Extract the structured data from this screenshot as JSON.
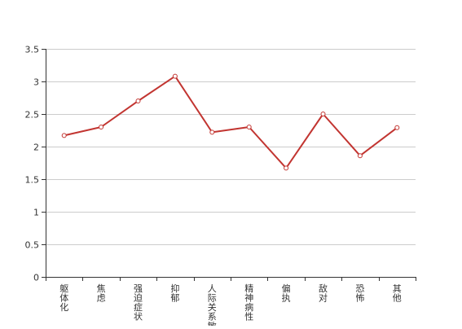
{
  "chart_data": {
    "type": "line",
    "categories": [
      "躯体化",
      "焦虑",
      "强迫症状",
      "抑郁",
      "人际关系敏感",
      "精神病性",
      "偏执",
      "敌对",
      "恐怖",
      "其他"
    ],
    "series": [
      {
        "values": [
          2.17,
          2.3,
          2.7,
          3.08,
          2.22,
          2.3,
          1.67,
          2.5,
          1.86,
          2.29
        ],
        "color": "#c23531"
      }
    ],
    "ylim": [
      0,
      3.5
    ],
    "yticks": [
      0,
      0.5,
      1,
      1.5,
      2,
      2.5,
      3,
      3.5
    ],
    "grid": true,
    "title": "",
    "xlabel": "",
    "ylabel": ""
  }
}
